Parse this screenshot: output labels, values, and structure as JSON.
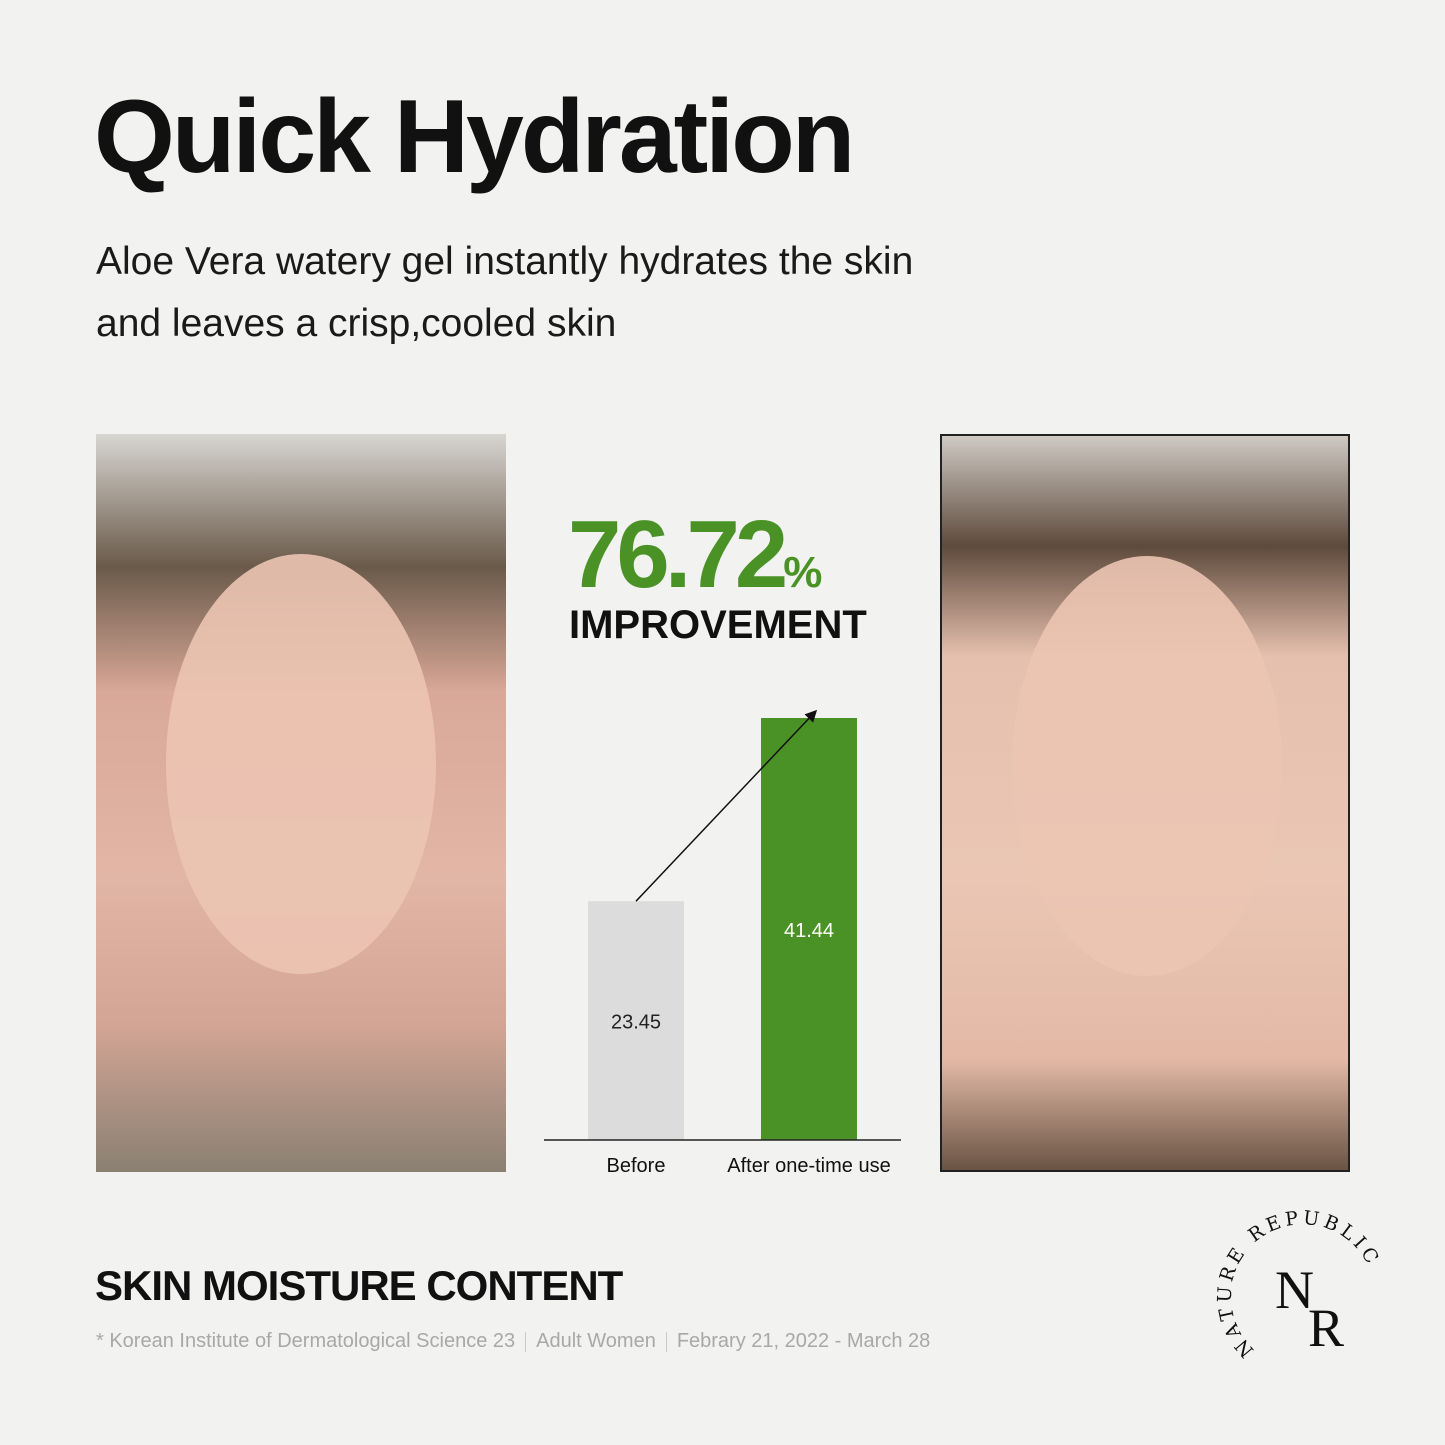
{
  "title": "Quick Hydration",
  "subtitle_lines": [
    "Aloe Vera watery gel instantly hydrates the skin",
    "and leaves a crisp,cooled skin"
  ],
  "highlight": {
    "value": "76.72",
    "unit": "%",
    "label": "IMPROVEMENT"
  },
  "section_title": "SKIN MOISTURE CONTENT",
  "footnote": [
    "* Korean Institute of Dermatological Science 23",
    "Adult Women",
    "Febrary 21, 2022 - March 28"
  ],
  "brand": {
    "logo_text": "NATURE REPUBLIC",
    "monogram": "NR"
  },
  "colors": {
    "after": "#4a9226",
    "before": "#dcdcdc",
    "text": "#111111"
  },
  "chart_data": {
    "type": "bar",
    "categories": [
      "Before",
      "After one-time use"
    ],
    "values": [
      23.45,
      41.44
    ],
    "data_labels": [
      "23.45",
      "41.44"
    ],
    "ylim": [
      0,
      42
    ],
    "grid": false,
    "arrow": "from Before to After"
  }
}
